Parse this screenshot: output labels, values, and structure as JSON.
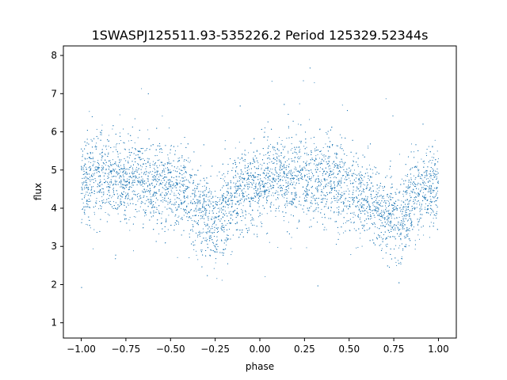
{
  "chart_data": {
    "type": "scatter",
    "title": "1SWASPJ125511.93-535226.2 Period 125329.52344s",
    "xlabel": "phase",
    "ylabel": "flux",
    "xlim": [
      -1.1,
      1.1
    ],
    "ylim": [
      0.6,
      8.25
    ],
    "x_ticks": [
      {
        "value": -1.0,
        "label": "−1.00"
      },
      {
        "value": -0.75,
        "label": "−0.75"
      },
      {
        "value": -0.5,
        "label": "−0.50"
      },
      {
        "value": -0.25,
        "label": "−0.25"
      },
      {
        "value": 0.0,
        "label": "0.00"
      },
      {
        "value": 0.25,
        "label": "0.25"
      },
      {
        "value": 0.5,
        "label": "0.50"
      },
      {
        "value": 0.75,
        "label": "0.75"
      },
      {
        "value": 1.0,
        "label": "1.00"
      }
    ],
    "y_ticks": [
      {
        "value": 1,
        "label": "1"
      },
      {
        "value": 2,
        "label": "2"
      },
      {
        "value": 3,
        "label": "3"
      },
      {
        "value": 4,
        "label": "4"
      },
      {
        "value": 5,
        "label": "5"
      },
      {
        "value": 6,
        "label": "6"
      },
      {
        "value": 7,
        "label": "7"
      },
      {
        "value": 8,
        "label": "8"
      }
    ],
    "grid": false,
    "legend": false,
    "point_color": "#1f77b4",
    "series": [
      {
        "description": "folded light curve, phase -1 to 1 (two cycles); mean flux profile",
        "x": [
          -1.0,
          -0.9,
          -0.8,
          -0.7,
          -0.6,
          -0.5,
          -0.4,
          -0.3,
          -0.25,
          -0.2,
          -0.1,
          0.0,
          0.1,
          0.2,
          0.3,
          0.4,
          0.5,
          0.6,
          0.7,
          0.75,
          0.8,
          0.9,
          1.0
        ],
        "y": [
          4.7,
          4.8,
          4.8,
          4.8,
          4.7,
          4.6,
          4.3,
          3.85,
          3.65,
          3.9,
          4.4,
          4.7,
          4.8,
          4.8,
          4.8,
          4.7,
          4.55,
          4.25,
          3.8,
          3.6,
          3.85,
          4.35,
          4.6
        ],
        "scatter_spread": 0.55
      }
    ]
  }
}
